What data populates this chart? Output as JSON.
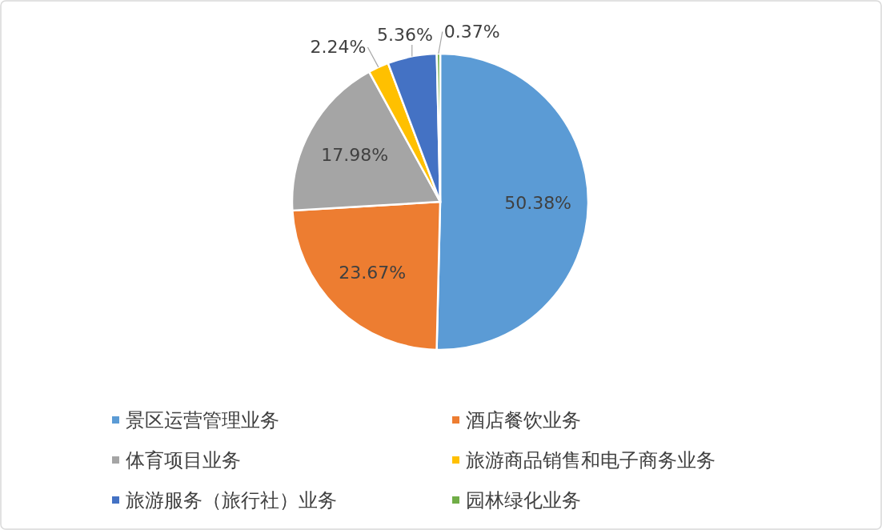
{
  "chart_data": {
    "type": "pie",
    "categories": [
      "景区运营管理业务",
      "酒店餐饮业务",
      "体育项目业务",
      "旅游商品销售和电子商务业务",
      "旅游服务（旅行社）业务",
      "园林绿化业务"
    ],
    "values": [
      50.38,
      23.67,
      17.98,
      2.24,
      5.36,
      0.37
    ],
    "colors": [
      "#5b9bd5",
      "#ed7d31",
      "#a5a5a5",
      "#ffc000",
      "#4472c4",
      "#70ad47"
    ],
    "value_labels": [
      "50.38%",
      "23.67%",
      "17.98%",
      "2.24%",
      "5.36%",
      "0.37%"
    ],
    "legend": "bottom"
  }
}
